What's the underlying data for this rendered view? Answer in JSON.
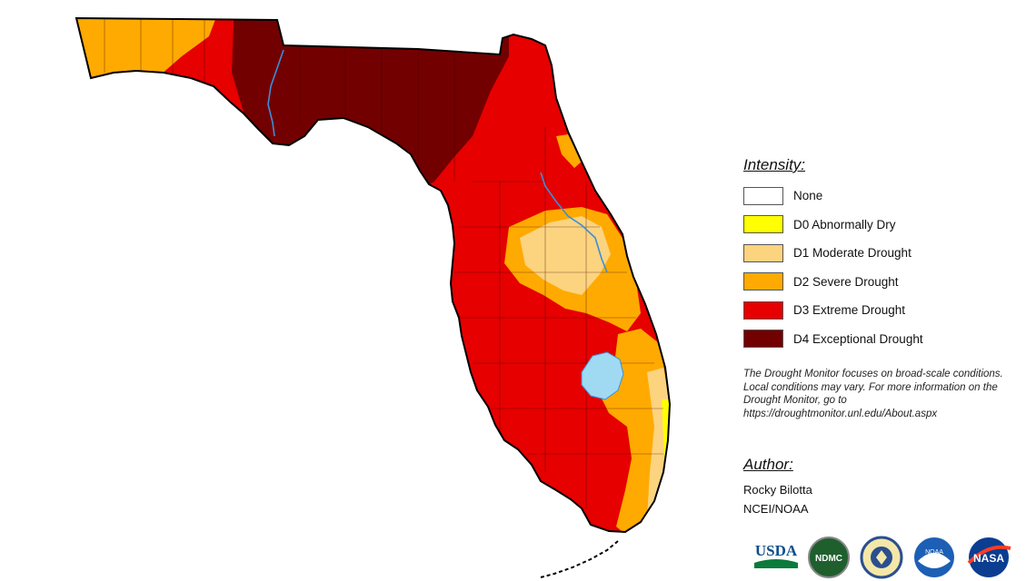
{
  "legend": {
    "title": "Intensity:",
    "items": [
      {
        "label": "None",
        "color": "#ffffff"
      },
      {
        "label": "D0 Abnormally Dry",
        "color": "#ffff00"
      },
      {
        "label": "D1 Moderate Drought",
        "color": "#fcd37f"
      },
      {
        "label": "D2 Severe Drought",
        "color": "#ffaa00"
      },
      {
        "label": "D3 Extreme Drought",
        "color": "#e60000"
      },
      {
        "label": "D4 Exceptional Drought",
        "color": "#730000"
      }
    ]
  },
  "note": "The Drought Monitor focuses on broad-scale conditions. Local conditions may vary. For more information on the Drought Monitor, go to https://droughtmonitor.unl.edu/About.aspx",
  "author": {
    "title": "Author:",
    "name": "Rocky Bilotta",
    "org": "NCEI/NOAA"
  },
  "logos": {
    "usda": "USDA",
    "ndmc": "NDMC",
    "noaa": "NOAA",
    "nasa": "NASA"
  },
  "colors": {
    "outline": "#000000",
    "water": "#9fd9f2",
    "river": "#3a8fd9"
  }
}
